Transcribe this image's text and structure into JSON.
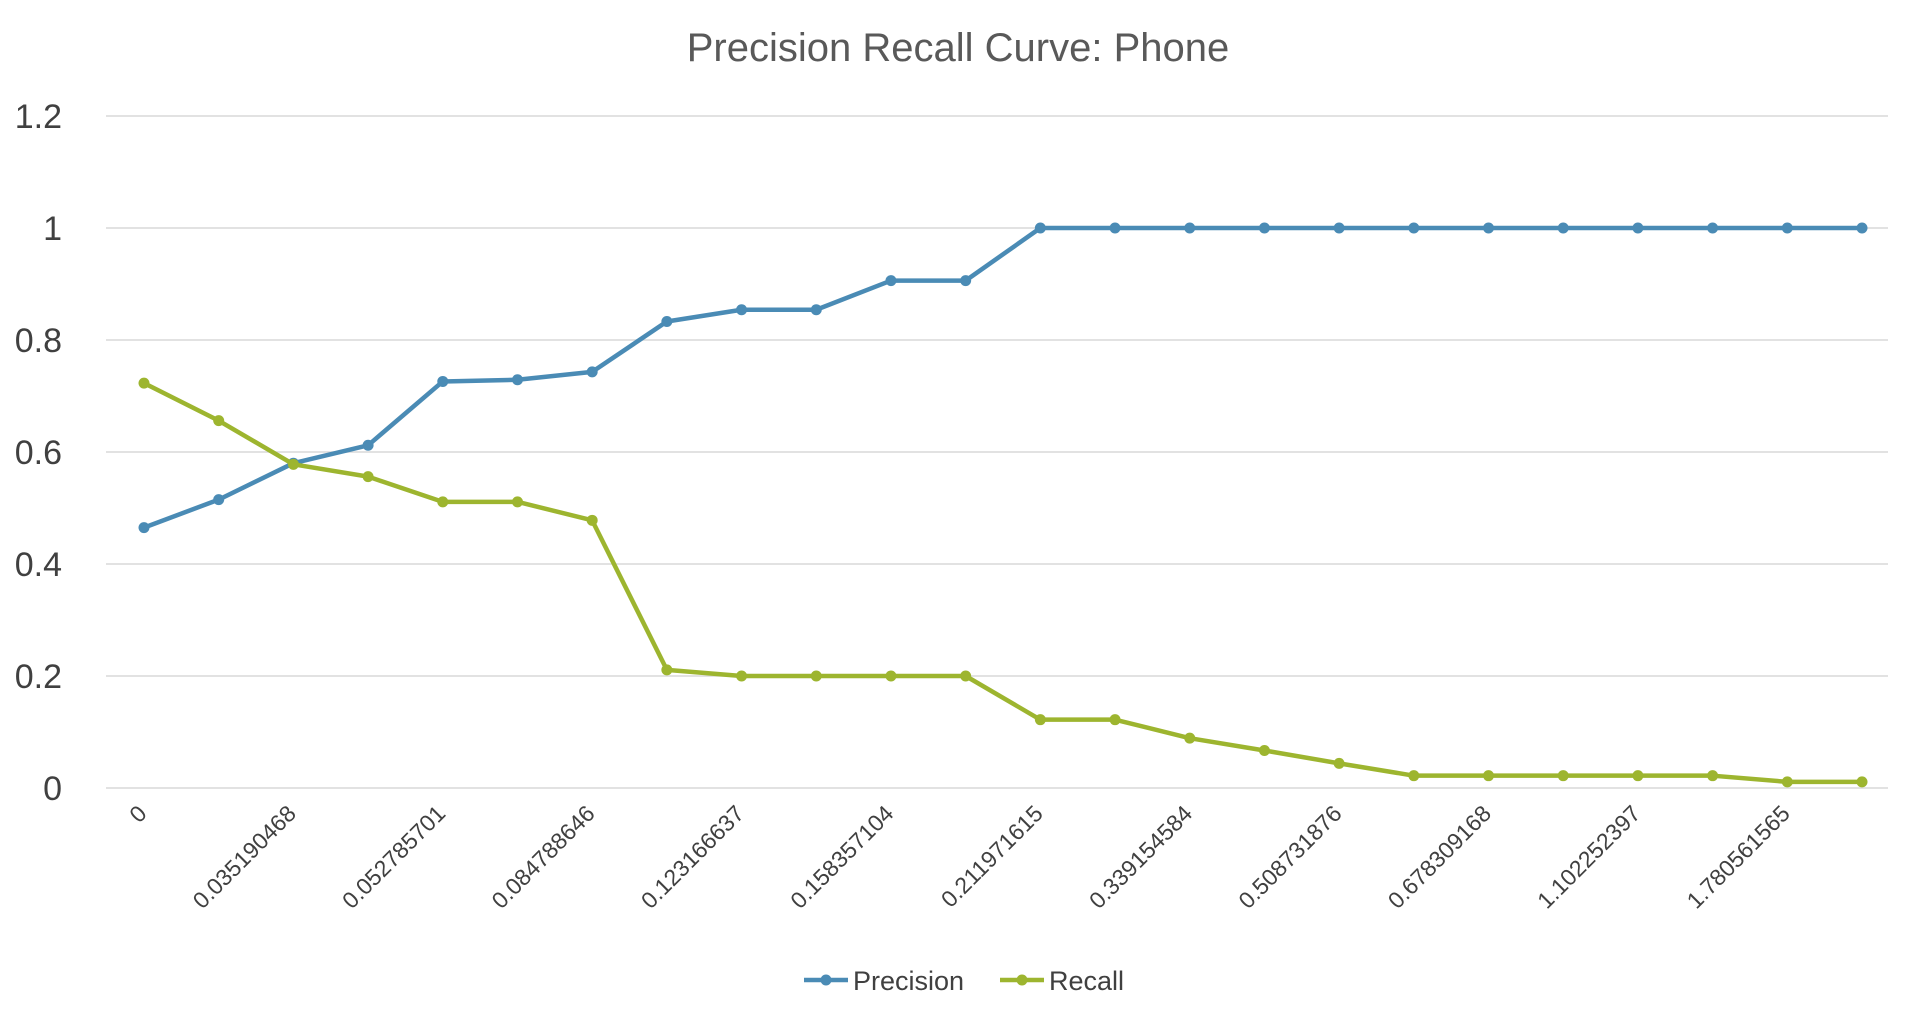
{
  "chart_data": {
    "type": "line",
    "title": "Precision Recall Curve: Phone",
    "xlabel": "",
    "ylabel": "",
    "x_tick_labels": [
      "0",
      "0.035190468",
      "0.052785701",
      "0.084788646",
      "0.123166637",
      "0.158357104",
      "0.211971615",
      "0.339154584",
      "0.508731876",
      "0.678309168",
      "1.102252397",
      "1.780561565"
    ],
    "y_ticks": [
      "0",
      "0.2",
      "0.4",
      "0.6",
      "0.8",
      "1",
      "1.2"
    ],
    "ylim": [
      0,
      1.2
    ],
    "grid": "horizontal",
    "legend_position": "bottom",
    "point_count": 24,
    "series": [
      {
        "name": "Precision",
        "color": "#4a8bb5",
        "values": [
          0.465,
          0.515,
          0.58,
          0.612,
          0.726,
          0.729,
          0.743,
          0.833,
          0.854,
          0.854,
          0.906,
          0.906,
          1,
          1,
          1,
          1,
          1,
          1,
          1,
          1,
          1,
          1,
          1,
          1
        ]
      },
      {
        "name": "Recall",
        "color": "#9db52f",
        "values": [
          0.723,
          0.656,
          0.578,
          0.556,
          0.511,
          0.511,
          0.478,
          0.211,
          0.2,
          0.2,
          0.2,
          0.2,
          0.122,
          0.122,
          0.089,
          0.067,
          0.044,
          0.022,
          0.022,
          0.022,
          0.022,
          0.022,
          0.011,
          0.011
        ]
      }
    ]
  }
}
